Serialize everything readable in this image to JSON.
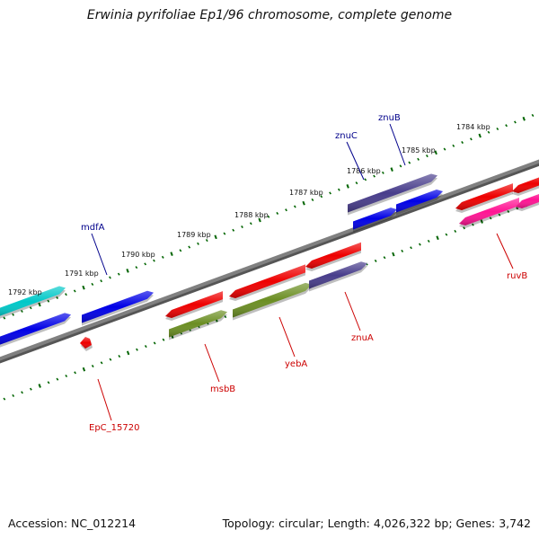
{
  "title": "Erwinia pyrifoliae Ep1/96 chromosome, complete genome",
  "footer": {
    "accession": "Accession: NC_012214",
    "summary": "Topology: circular; Length: 4,026,322 bp; Genes: 3,742"
  },
  "scale_labels": [
    "1784 kbp",
    "1785 kbp",
    "1786 kbp",
    "1787 kbp",
    "1788 kbp",
    "1789 kbp",
    "1790 kbp",
    "1791 kbp",
    "1792 kbp"
  ],
  "colors": {
    "backbone": "#808080",
    "tick": "#006400",
    "label_top": "#00008b",
    "label_bottom": "#cc0000",
    "blue": "#0000e6",
    "red": "#ee0000",
    "navy": "#483d8b",
    "cyan": "#00c8c8",
    "olive": "#6b8e23",
    "pink": "#ff1493"
  },
  "genes": [
    {
      "name": "mdfA",
      "color": "blue",
      "label": "top"
    },
    {
      "name": "znuC",
      "color": "navy",
      "label": "top"
    },
    {
      "name": "znuB",
      "color": "blue",
      "label": "top"
    },
    {
      "name": "EpC_15720",
      "color": "red",
      "label": "bottom"
    },
    {
      "name": "msbB",
      "color": "olive",
      "label": "bottom"
    },
    {
      "name": "yebA",
      "color": "olive",
      "label": "bottom"
    },
    {
      "name": "znuA",
      "color": "navy",
      "label": "bottom"
    },
    {
      "name": "ruvB",
      "color": "pink",
      "label": "bottom"
    }
  ]
}
